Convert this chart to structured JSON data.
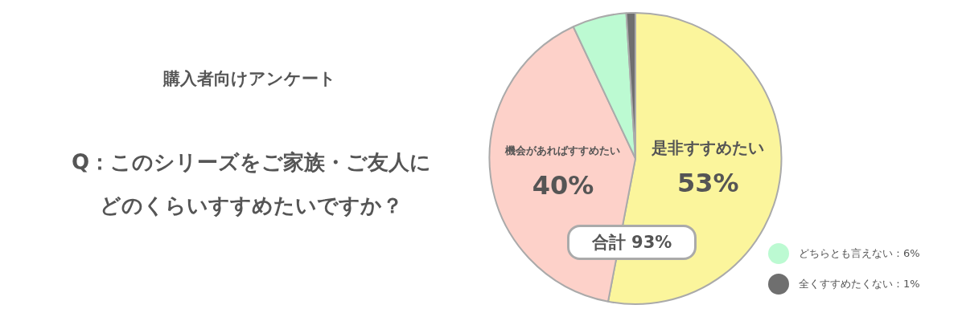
{
  "chart_data": {
    "type": "pie",
    "title": "購入者向けアンケート",
    "subtitle": "Q：このシリーズをご家族・ご友人にどのくらいすすめたいですか？",
    "categories": [
      "是非すすめたい",
      "機会があればすすめたい",
      "どちらとも言えない",
      "全くすすめたくない"
    ],
    "values": [
      53,
      40,
      6,
      1
    ],
    "colors": [
      "#fbf59c",
      "#fdd1c9",
      "#bcfad2",
      "#6f6f6f"
    ],
    "value_labels": [
      "53%",
      "40%",
      "6%",
      "1%"
    ],
    "annotations": [
      "合計 93%"
    ],
    "legend": "bottom right"
  }
}
